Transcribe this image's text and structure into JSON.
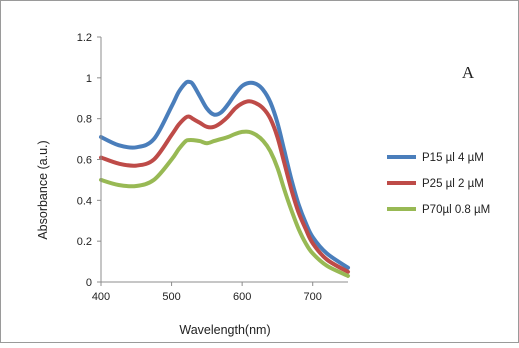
{
  "chart_data": {
    "type": "line",
    "xlabel": "Wavelength(nm)",
    "ylabel": "Absorbance (a.u.)",
    "panel_label": "A",
    "xlim": [
      400,
      750
    ],
    "ylim": [
      0,
      1.2
    ],
    "x_ticks": [
      400,
      500,
      600,
      700
    ],
    "x_tick_labels": [
      "400",
      "500",
      "600",
      "700"
    ],
    "y_ticks": [
      0,
      0.2,
      0.4,
      0.6,
      0.8,
      1,
      1.2
    ],
    "y_tick_labels": [
      "0",
      "0.2",
      "0.4",
      "0.6",
      "0.8",
      "1",
      "1.2"
    ],
    "grid": false,
    "legend_position": "right",
    "x": [
      400,
      425,
      450,
      475,
      500,
      510,
      520,
      525,
      530,
      540,
      550,
      560,
      570,
      580,
      590,
      600,
      610,
      620,
      630,
      640,
      650,
      660,
      670,
      680,
      690,
      700,
      720,
      750
    ],
    "series": [
      {
        "name": "P15 µl 4 µM",
        "color": "#4a7ebb",
        "values": [
          0.71,
          0.67,
          0.66,
          0.7,
          0.86,
          0.93,
          0.975,
          0.98,
          0.97,
          0.91,
          0.85,
          0.82,
          0.83,
          0.87,
          0.92,
          0.96,
          0.975,
          0.97,
          0.94,
          0.88,
          0.78,
          0.64,
          0.5,
          0.38,
          0.29,
          0.22,
          0.14,
          0.07
        ]
      },
      {
        "name": "P25 µl 2 µM",
        "color": "#be4b48",
        "values": [
          0.61,
          0.58,
          0.57,
          0.6,
          0.72,
          0.77,
          0.805,
          0.81,
          0.8,
          0.78,
          0.76,
          0.76,
          0.78,
          0.81,
          0.85,
          0.875,
          0.885,
          0.875,
          0.85,
          0.8,
          0.71,
          0.58,
          0.45,
          0.34,
          0.26,
          0.19,
          0.11,
          0.05
        ]
      },
      {
        "name": "P70µl 0.8 µM",
        "color": "#98b954",
        "values": [
          0.5,
          0.475,
          0.47,
          0.5,
          0.6,
          0.65,
          0.69,
          0.695,
          0.695,
          0.69,
          0.68,
          0.69,
          0.7,
          0.71,
          0.725,
          0.735,
          0.735,
          0.72,
          0.69,
          0.64,
          0.56,
          0.45,
          0.35,
          0.26,
          0.19,
          0.14,
          0.08,
          0.03
        ]
      }
    ]
  }
}
